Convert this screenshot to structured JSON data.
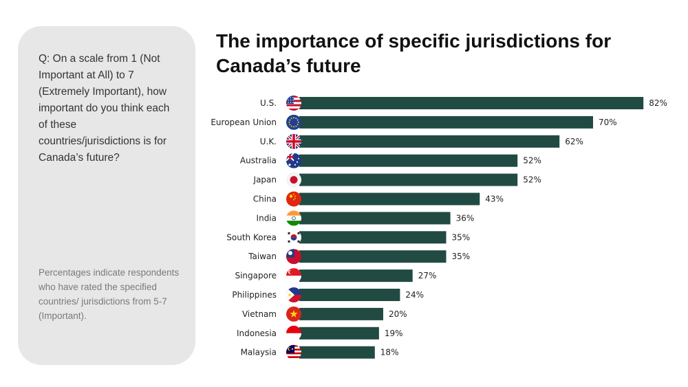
{
  "question": "Q: On a scale from 1 (Not Important at All) to 7 (Extremely Important), how important do you think each of these countries/jurisdictions is for Canada’s future?",
  "note": "Percentages indicate respondents who have rated the specified countries/ jurisdictions from 5-7 (Important).",
  "colors": {
    "bar": "#214a43",
    "panel": "#e7e7e7"
  },
  "chart_data": {
    "type": "bar",
    "orientation": "horizontal",
    "title": "The importance of specific jurisdictions for Canada’s future",
    "categories": [
      "U.S.",
      "European Union",
      "U.K.",
      "Australia",
      "Japan",
      "China",
      "India",
      "South Korea",
      "Taiwan",
      "Singapore",
      "Philippines",
      "Vietnam",
      "Indonesia",
      "Malaysia"
    ],
    "values": [
      82,
      70,
      62,
      52,
      52,
      43,
      36,
      35,
      35,
      27,
      24,
      20,
      19,
      18
    ],
    "value_labels": [
      "82%",
      "70%",
      "62%",
      "52%",
      "52%",
      "43%",
      "36%",
      "35%",
      "35%",
      "27%",
      "24%",
      "20%",
      "19%",
      "18%"
    ],
    "icons": [
      "us-flag-icon",
      "eu-flag-icon",
      "uk-flag-icon",
      "australia-flag-icon",
      "japan-flag-icon",
      "china-flag-icon",
      "india-flag-icon",
      "south-korea-flag-icon",
      "taiwan-flag-icon",
      "singapore-flag-icon",
      "philippines-flag-icon",
      "vietnam-flag-icon",
      "indonesia-flag-icon",
      "malaysia-flag-icon"
    ],
    "xlim": [
      0,
      100
    ],
    "grid": false,
    "legend": "none"
  }
}
